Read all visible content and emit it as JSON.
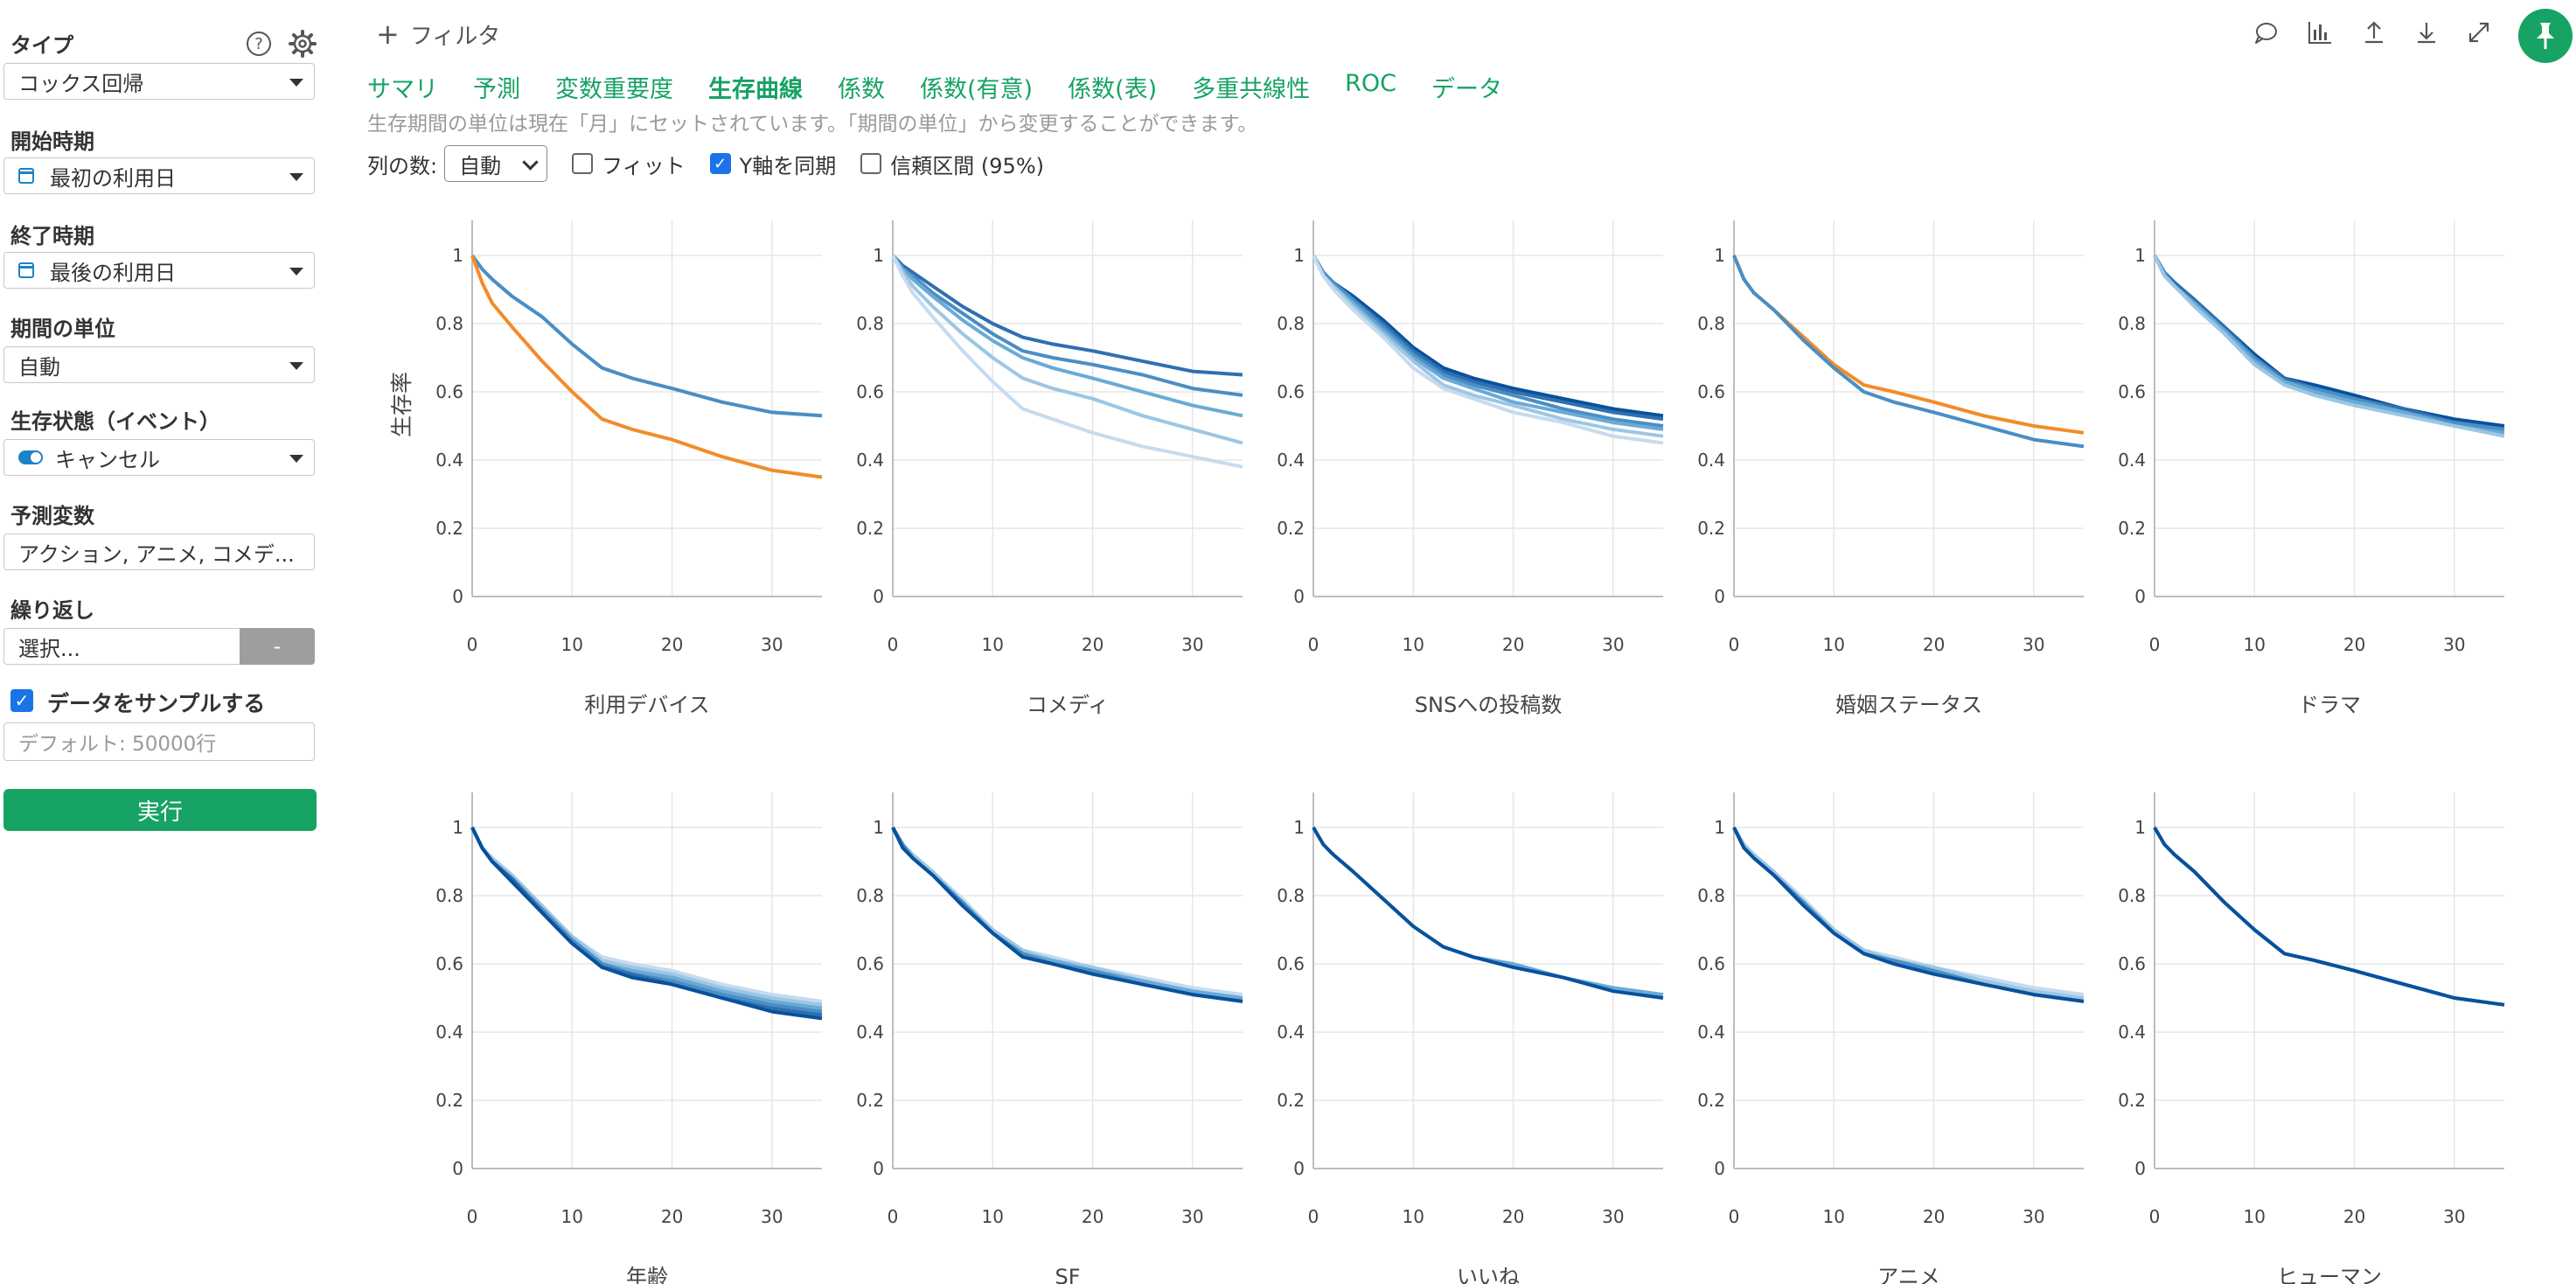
{
  "sidebar": {
    "type_label": "タイプ",
    "type_value": "コックス回帰",
    "start_label": "開始時期",
    "start_value": "最初の利用日",
    "end_label": "終了時期",
    "end_value": "最後の利用日",
    "unit_label": "期間の単位",
    "unit_value": "自動",
    "status_label": "生存状態（イベント）",
    "status_value": "キャンセル",
    "predictors_label": "予測変数",
    "predictors_value": "アクション, アニメ, コメデ...",
    "repeat_label": "繰り返し",
    "repeat_value": "選択...",
    "repeat_button": "-",
    "sample_label": "データをサンプルする",
    "sample_checked": true,
    "sample_placeholder": "デフォルト: 50000行",
    "run_button": "実行",
    "help_icon": "?"
  },
  "topbar": {
    "filter_label": "フィルタ",
    "tabs": [
      {
        "label": "サマリ",
        "active": false
      },
      {
        "label": "予測",
        "active": false
      },
      {
        "label": "変数重要度",
        "active": false
      },
      {
        "label": "生存曲線",
        "active": true
      },
      {
        "label": "係数",
        "active": false
      },
      {
        "label": "係数(有意)",
        "active": false
      },
      {
        "label": "係数(表)",
        "active": false
      },
      {
        "label": "多重共線性",
        "active": false
      },
      {
        "label": "ROC",
        "active": false
      },
      {
        "label": "データ",
        "active": false
      }
    ],
    "note": "生存期間の単位は現在「月」にセットされています。「期間の単位」から変更することができます。",
    "cols_label": "列の数:",
    "cols_value": "自動",
    "fit_label": "フィット",
    "fit_checked": false,
    "sync_y_label": "Y軸を同期",
    "sync_y_checked": true,
    "ci_label": "信頼区間 (95%)",
    "ci_checked": false,
    "icons": [
      "comment-icon",
      "bar-chart-icon",
      "upload-icon",
      "download-icon",
      "expand-icon",
      "pin-icon"
    ]
  },
  "chart_data": {
    "type": "line",
    "ylabel": "生存率",
    "xlim": [
      0,
      35
    ],
    "ylim": [
      0,
      1
    ],
    "x_ticks": [
      0,
      10,
      20,
      30
    ],
    "y_ticks": [
      "0",
      "0.2",
      "0.4",
      "0.6",
      "0.8",
      "1"
    ],
    "x": [
      0,
      1,
      2,
      4,
      7,
      10,
      13,
      16,
      20,
      25,
      30,
      35
    ],
    "colors": {
      "orange": "#f28c28",
      "blues": [
        "#08519c",
        "#2f6fb0",
        "#4a8ec4",
        "#6aaad6",
        "#9cc6e4",
        "#c6dbef"
      ]
    },
    "panels": [
      {
        "title": "利用デバイス",
        "series": [
          {
            "values": [
              1,
              0.96,
              0.93,
              0.88,
              0.82,
              0.74,
              0.67,
              0.64,
              0.61,
              0.57,
              0.54,
              0.53
            ],
            "color": "#4a8ec4"
          },
          {
            "values": [
              1,
              0.92,
              0.86,
              0.79,
              0.69,
              0.6,
              0.52,
              0.49,
              0.46,
              0.41,
              0.37,
              0.35
            ],
            "color": "#f28c28"
          }
        ]
      },
      {
        "title": "コメディ",
        "series": [
          {
            "values": [
              1,
              0.97,
              0.95,
              0.91,
              0.85,
              0.8,
              0.76,
              0.74,
              0.72,
              0.69,
              0.66,
              0.65
            ],
            "color": "#2f6fb0"
          },
          {
            "values": [
              1,
              0.96,
              0.94,
              0.89,
              0.83,
              0.77,
              0.72,
              0.7,
              0.68,
              0.65,
              0.61,
              0.59
            ],
            "color": "#4a8ec4"
          },
          {
            "values": [
              1,
              0.96,
              0.93,
              0.88,
              0.81,
              0.75,
              0.7,
              0.67,
              0.64,
              0.6,
              0.56,
              0.53
            ],
            "color": "#6aaad6"
          },
          {
            "values": [
              1,
              0.95,
              0.91,
              0.85,
              0.77,
              0.7,
              0.64,
              0.61,
              0.58,
              0.53,
              0.49,
              0.45
            ],
            "color": "#9cc6e4"
          },
          {
            "values": [
              1,
              0.94,
              0.89,
              0.82,
              0.72,
              0.63,
              0.55,
              0.52,
              0.48,
              0.44,
              0.41,
              0.38
            ],
            "color": "#c6dbef"
          }
        ]
      },
      {
        "title": "SNSへの投稿数",
        "series": [
          {
            "values": [
              1,
              0.95,
              0.92,
              0.88,
              0.81,
              0.73,
              0.67,
              0.64,
              0.61,
              0.58,
              0.55,
              0.53
            ],
            "color": "#08519c"
          },
          {
            "values": [
              1,
              0.95,
              0.92,
              0.87,
              0.8,
              0.72,
              0.66,
              0.63,
              0.6,
              0.57,
              0.54,
              0.52
            ],
            "color": "#2f6fb0"
          },
          {
            "values": [
              1,
              0.95,
              0.92,
              0.87,
              0.79,
              0.71,
              0.65,
              0.62,
              0.59,
              0.55,
              0.52,
              0.5
            ],
            "color": "#4a8ec4"
          },
          {
            "values": [
              1,
              0.94,
              0.91,
              0.86,
              0.78,
              0.7,
              0.64,
              0.61,
              0.57,
              0.54,
              0.51,
              0.49
            ],
            "color": "#6aaad6"
          },
          {
            "values": [
              1,
              0.94,
              0.91,
              0.85,
              0.77,
              0.69,
              0.62,
              0.59,
              0.56,
              0.52,
              0.49,
              0.47
            ],
            "color": "#9cc6e4"
          },
          {
            "values": [
              1,
              0.94,
              0.9,
              0.84,
              0.76,
              0.67,
              0.61,
              0.58,
              0.54,
              0.51,
              0.47,
              0.45
            ],
            "color": "#c6dbef"
          }
        ]
      },
      {
        "title": "婚姻ステータス",
        "series": [
          {
            "values": [
              1,
              0.93,
              0.89,
              0.84,
              0.76,
              0.68,
              0.62,
              0.6,
              0.57,
              0.53,
              0.5,
              0.48
            ],
            "color": "#f28c28"
          },
          {
            "values": [
              1,
              0.93,
              0.89,
              0.84,
              0.75,
              0.67,
              0.6,
              0.57,
              0.54,
              0.5,
              0.46,
              0.44
            ],
            "color": "#4a8ec4"
          }
        ]
      },
      {
        "title": "ドラマ",
        "series": [
          {
            "values": [
              1,
              0.95,
              0.92,
              0.87,
              0.79,
              0.71,
              0.64,
              0.62,
              0.59,
              0.55,
              0.52,
              0.5
            ],
            "color": "#08519c"
          },
          {
            "values": [
              1,
              0.95,
              0.92,
              0.87,
              0.79,
              0.7,
              0.64,
              0.61,
              0.58,
              0.55,
              0.51,
              0.49
            ],
            "color": "#2f6fb0"
          },
          {
            "values": [
              1,
              0.95,
              0.91,
              0.86,
              0.78,
              0.7,
              0.63,
              0.61,
              0.58,
              0.54,
              0.51,
              0.49
            ],
            "color": "#4a8ec4"
          },
          {
            "values": [
              1,
              0.94,
              0.91,
              0.86,
              0.78,
              0.69,
              0.63,
              0.6,
              0.57,
              0.54,
              0.5,
              0.48
            ],
            "color": "#6aaad6"
          },
          {
            "values": [
              1,
              0.94,
              0.91,
              0.85,
              0.77,
              0.68,
              0.62,
              0.59,
              0.56,
              0.53,
              0.5,
              0.47
            ],
            "color": "#9cc6e4"
          }
        ]
      },
      {
        "title": "年齢",
        "series": [
          {
            "values": [
              1,
              0.94,
              0.91,
              0.86,
              0.77,
              0.68,
              0.62,
              0.6,
              0.58,
              0.54,
              0.51,
              0.49
            ],
            "color": "#c6dbef"
          },
          {
            "values": [
              1,
              0.94,
              0.91,
              0.86,
              0.77,
              0.68,
              0.61,
              0.59,
              0.57,
              0.53,
              0.5,
              0.48
            ],
            "color": "#9cc6e4"
          },
          {
            "values": [
              1,
              0.94,
              0.9,
              0.85,
              0.76,
              0.67,
              0.6,
              0.58,
              0.56,
              0.52,
              0.49,
              0.47
            ],
            "color": "#6aaad6"
          },
          {
            "values": [
              1,
              0.94,
              0.9,
              0.85,
              0.76,
              0.67,
              0.6,
              0.57,
              0.55,
              0.51,
              0.48,
              0.46
            ],
            "color": "#4a8ec4"
          },
          {
            "values": [
              1,
              0.94,
              0.9,
              0.85,
              0.75,
              0.66,
              0.59,
              0.57,
              0.54,
              0.5,
              0.47,
              0.45
            ],
            "color": "#2f6fb0"
          },
          {
            "values": [
              1,
              0.94,
              0.9,
              0.84,
              0.75,
              0.66,
              0.59,
              0.56,
              0.54,
              0.5,
              0.46,
              0.44
            ],
            "color": "#08519c"
          }
        ]
      },
      {
        "title": "SF",
        "series": [
          {
            "values": [
              1,
              0.95,
              0.92,
              0.87,
              0.79,
              0.7,
              0.64,
              0.62,
              0.59,
              0.56,
              0.53,
              0.51
            ],
            "color": "#c6dbef"
          },
          {
            "values": [
              1,
              0.95,
              0.92,
              0.87,
              0.78,
              0.7,
              0.64,
              0.61,
              0.59,
              0.55,
              0.52,
              0.5
            ],
            "color": "#9cc6e4"
          },
          {
            "values": [
              1,
              0.95,
              0.91,
              0.86,
              0.78,
              0.69,
              0.63,
              0.61,
              0.58,
              0.55,
              0.52,
              0.5
            ],
            "color": "#6aaad6"
          },
          {
            "values": [
              1,
              0.95,
              0.91,
              0.86,
              0.78,
              0.69,
              0.63,
              0.6,
              0.58,
              0.54,
              0.51,
              0.49
            ],
            "color": "#4a8ec4"
          },
          {
            "values": [
              1,
              0.94,
              0.91,
              0.86,
              0.77,
              0.69,
              0.62,
              0.6,
              0.57,
              0.54,
              0.51,
              0.49
            ],
            "color": "#08519c"
          }
        ]
      },
      {
        "title": "いいね",
        "series": [
          {
            "values": [
              1,
              0.95,
              0.92,
              0.87,
              0.79,
              0.71,
              0.65,
              0.62,
              0.6,
              0.56,
              0.53,
              0.51
            ],
            "color": "#6aaad6"
          },
          {
            "values": [
              1,
              0.95,
              0.92,
              0.87,
              0.79,
              0.71,
              0.65,
              0.62,
              0.59,
              0.56,
              0.52,
              0.5
            ],
            "color": "#08519c"
          }
        ]
      },
      {
        "title": "アニメ",
        "series": [
          {
            "values": [
              1,
              0.95,
              0.92,
              0.87,
              0.79,
              0.7,
              0.64,
              0.62,
              0.59,
              0.56,
              0.53,
              0.51
            ],
            "color": "#c6dbef"
          },
          {
            "values": [
              1,
              0.95,
              0.92,
              0.87,
              0.78,
              0.7,
              0.64,
              0.61,
              0.59,
              0.55,
              0.52,
              0.5
            ],
            "color": "#9cc6e4"
          },
          {
            "values": [
              1,
              0.94,
              0.91,
              0.86,
              0.78,
              0.69,
              0.63,
              0.61,
              0.58,
              0.54,
              0.51,
              0.49
            ],
            "color": "#4a8ec4"
          },
          {
            "values": [
              1,
              0.94,
              0.91,
              0.86,
              0.77,
              0.69,
              0.63,
              0.6,
              0.57,
              0.54,
              0.51,
              0.49
            ],
            "color": "#08519c"
          }
        ]
      },
      {
        "title": "ヒューマン",
        "series": [
          {
            "values": [
              1,
              0.95,
              0.92,
              0.87,
              0.78,
              0.7,
              0.63,
              0.61,
              0.58,
              0.54,
              0.5,
              0.48
            ],
            "color": "#4a8ec4"
          },
          {
            "values": [
              1,
              0.95,
              0.92,
              0.87,
              0.78,
              0.7,
              0.63,
              0.61,
              0.58,
              0.54,
              0.5,
              0.48
            ],
            "color": "#08519c"
          }
        ]
      }
    ]
  }
}
